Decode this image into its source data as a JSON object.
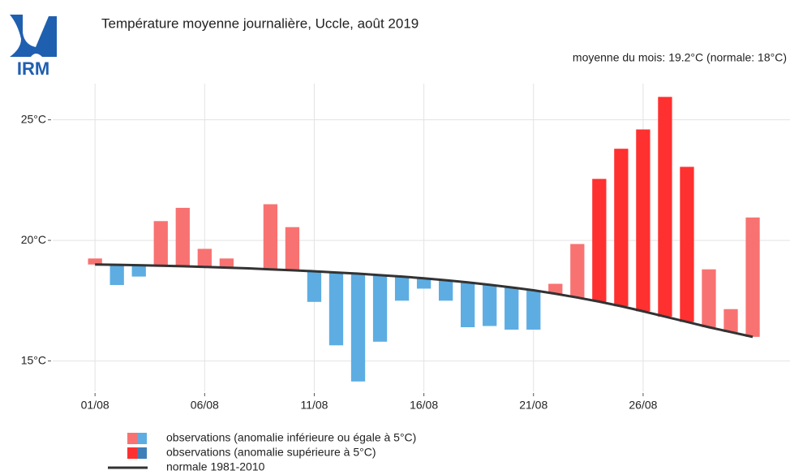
{
  "chart_data": {
    "type": "bar-range",
    "logo": "IRM",
    "title": "Température moyenne journalière, Uccle, août 2019",
    "subtitle": "moyenne du mois: 19.2°C (normale: 18°C)",
    "x": [
      1,
      2,
      3,
      4,
      5,
      6,
      7,
      8,
      9,
      10,
      11,
      12,
      13,
      14,
      15,
      16,
      17,
      18,
      19,
      20,
      21,
      22,
      23,
      24,
      25,
      26,
      27,
      28,
      29,
      30,
      31
    ],
    "observations": {
      "values": [
        19.25,
        18.15,
        18.5,
        20.8,
        21.35,
        19.65,
        19.25,
        18.84,
        21.5,
        20.55,
        17.45,
        15.65,
        14.15,
        15.8,
        17.5,
        18.0,
        17.5,
        16.4,
        16.45,
        16.3,
        16.3,
        18.2,
        19.85,
        22.55,
        23.8,
        24.6,
        25.95,
        23.05,
        18.8,
        17.15,
        20.95
      ],
      "colors": [
        "#f87272",
        "#5dade2",
        "#5dade2",
        "#f87272",
        "#f87272",
        "#f87272",
        "#f87272",
        "#f87272",
        "#f87272",
        "#f87272",
        "#5dade2",
        "#5dade2",
        "#5dade2",
        "#5dade2",
        "#5dade2",
        "#5dade2",
        "#5dade2",
        "#5dade2",
        "#5dade2",
        "#5dade2",
        "#5dade2",
        "#f87272",
        "#f87272",
        "#ff3030",
        "#ff3030",
        "#ff3030",
        "#ff3030",
        "#ff3030",
        "#f87272",
        "#f87272",
        "#f87272"
      ]
    },
    "normal": {
      "color": "#333333",
      "values": [
        19.0,
        18.99,
        18.97,
        18.95,
        18.93,
        18.9,
        18.87,
        18.84,
        18.8,
        18.76,
        18.72,
        18.67,
        18.62,
        18.56,
        18.5,
        18.43,
        18.35,
        18.26,
        18.16,
        18.05,
        17.93,
        17.79,
        17.63,
        17.46,
        17.27,
        17.06,
        16.84,
        16.62,
        16.4,
        16.2,
        16.0
      ]
    },
    "xlim": [
      -0.93,
      32.7
    ],
    "xticks": [
      {
        "value": 1,
        "label": "01/08"
      },
      {
        "value": 6,
        "label": "06/08"
      },
      {
        "value": 11,
        "label": "11/08"
      },
      {
        "value": 16,
        "label": "16/08"
      },
      {
        "value": 21,
        "label": "21/08"
      },
      {
        "value": 26,
        "label": "26/08"
      }
    ],
    "ylim": [
      13.74,
      26.5
    ],
    "yticks": [
      {
        "value": 15,
        "label": "15°C"
      },
      {
        "value": 20,
        "label": "20°C"
      },
      {
        "value": 25,
        "label": "25°C"
      }
    ],
    "grid": true,
    "legend": [
      {
        "label": "observations (anomalie inférieure ou égale à 5°C)",
        "colors": [
          "#f87272",
          "#5dade2"
        ]
      },
      {
        "label": "observations (anomalie supérieure à 5°C)",
        "colors": [
          "#ff3030",
          "#3f7fb8"
        ]
      },
      {
        "label": "normale 1981-2010",
        "color": "#333333"
      }
    ]
  }
}
